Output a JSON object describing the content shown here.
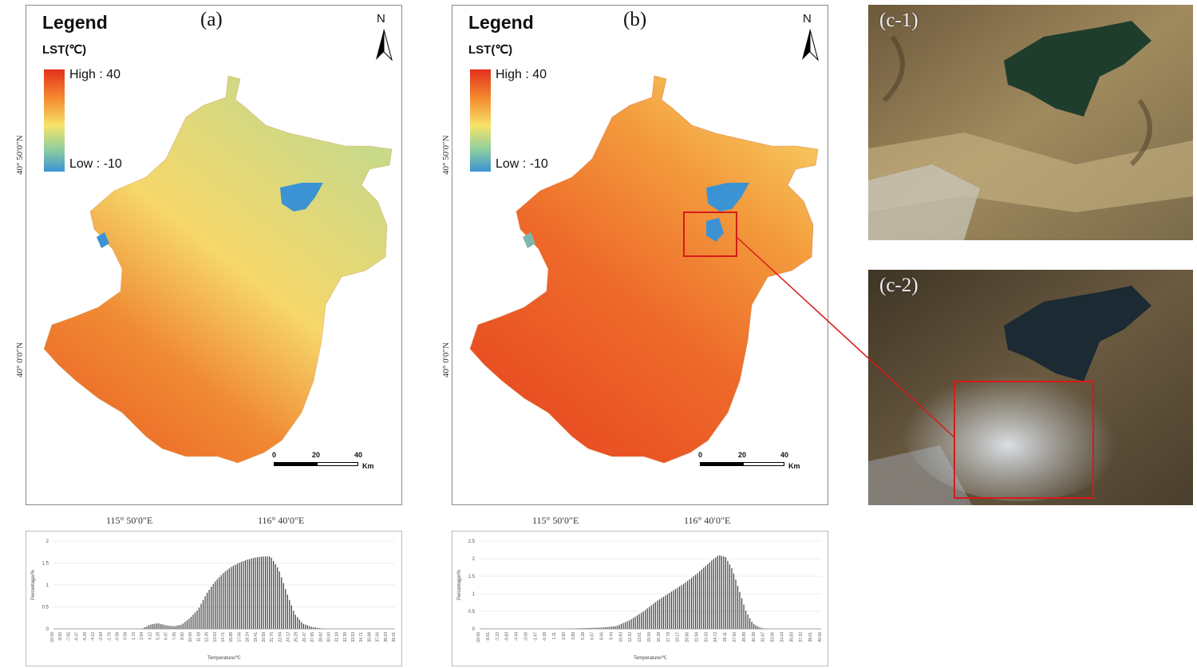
{
  "maps": [
    {
      "label": "(a)",
      "legend_title": "Legend",
      "unit_label": "LST(℃)",
      "high_label": "High : 40",
      "low_label": "Low : -10",
      "north_label": "N",
      "lat_labels": [
        "40° 50′0″N",
        "40° 0′0″N"
      ],
      "lon_labels": [
        "115° 50′0″E",
        "116° 40′0″E"
      ],
      "scale_labels": [
        "0",
        "20",
        "40",
        "Km"
      ]
    },
    {
      "label": "(b)",
      "legend_title": "Legend",
      "unit_label": "LST(℃)",
      "high_label": "High : 40",
      "low_label": "Low : -10",
      "north_label": "N",
      "lat_labels": [
        "40° 50′0″N",
        "40° 0′0″N"
      ],
      "lon_labels": [
        "115° 50′0″E",
        "116° 40′0″E"
      ],
      "scale_labels": [
        "0",
        "20",
        "40",
        "Km"
      ]
    }
  ],
  "satellite": [
    {
      "label": "(c-1)"
    },
    {
      "label": "(c-2)"
    }
  ],
  "colors": {
    "high": "#e2301c",
    "mid_high": "#f58a2e",
    "mid": "#f7e36a",
    "mid_low": "#8fcf9d",
    "low": "#3c93d4",
    "callout": "#d61a1a"
  },
  "chart_data": [
    {
      "type": "bar",
      "title": "",
      "xlabel": "Temperature/℃",
      "ylabel": "Percentage/%",
      "ylim": [
        0,
        2
      ],
      "yticks": [
        "0",
        "0.5",
        "1",
        "1.5",
        "2"
      ],
      "xticks": [
        "-10.00",
        "-8.82",
        "-7.65",
        "-6.47",
        "-5.29",
        "-4.12",
        "-2.94",
        "-1.76",
        "-0.59",
        "0.59",
        "1.76",
        "2.94",
        "4.12",
        "5.29",
        "6.47",
        "7.65",
        "8.82",
        "10.00",
        "11.18",
        "12.35",
        "13.53",
        "14.71",
        "15.88",
        "17.06",
        "18.24",
        "19.41",
        "20.59",
        "21.76",
        "22.94",
        "24.12",
        "25.29",
        "26.47",
        "27.65",
        "28.82",
        "30.00",
        "31.18",
        "32.35",
        "33.53",
        "34.71",
        "35.88",
        "37.06",
        "38.24",
        "39.41"
      ],
      "x_range": [
        -10,
        40
      ],
      "curve": [
        [
          -10,
          0
        ],
        [
          2.9,
          0
        ],
        [
          4.2,
          0.1
        ],
        [
          5.3,
          0.13
        ],
        [
          6.5,
          0.08
        ],
        [
          7.7,
          0.06
        ],
        [
          8.8,
          0.1
        ],
        [
          10,
          0.25
        ],
        [
          11.2,
          0.45
        ],
        [
          12.4,
          0.8
        ],
        [
          13.5,
          1.05
        ],
        [
          14.7,
          1.25
        ],
        [
          15.9,
          1.4
        ],
        [
          17.1,
          1.5
        ],
        [
          18.2,
          1.57
        ],
        [
          19.4,
          1.62
        ],
        [
          20.6,
          1.65
        ],
        [
          21.8,
          1.65
        ],
        [
          23,
          1.35
        ],
        [
          24.1,
          0.85
        ],
        [
          25.3,
          0.35
        ],
        [
          26.5,
          0.12
        ],
        [
          27.7,
          0.05
        ],
        [
          28.8,
          0.02
        ],
        [
          30,
          0
        ],
        [
          40,
          0
        ]
      ]
    },
    {
      "type": "bar",
      "title": "",
      "xlabel": "Temperature/℃",
      "ylabel": "Percentage/%",
      "ylim": [
        0,
        2.5
      ],
      "yticks": [
        "0",
        "0.5",
        "1",
        "1.5",
        "2",
        "2.5"
      ],
      "xticks": [
        "-10.00",
        "-8.61",
        "-7.22",
        "-5.83",
        "-4.44",
        "-3.06",
        "-1.67",
        "-0.28",
        "1.11",
        "2.50",
        "3.89",
        "5.28",
        "6.67",
        "8.06",
        "9.44",
        "10.83",
        "12.22",
        "13.61",
        "15.00",
        "16.39",
        "17.78",
        "19.17",
        "20.56",
        "21.94",
        "23.33",
        "24.72",
        "26.11",
        "27.50",
        "28.89",
        "30.28",
        "31.67",
        "33.06",
        "34.44",
        "35.83",
        "37.22",
        "38.61",
        "40.00"
      ],
      "x_range": [
        -10,
        40
      ],
      "curve": [
        [
          -10,
          0
        ],
        [
          2,
          0
        ],
        [
          5,
          0.02
        ],
        [
          8,
          0.04
        ],
        [
          10,
          0.08
        ],
        [
          12,
          0.25
        ],
        [
          14,
          0.5
        ],
        [
          16,
          0.8
        ],
        [
          18,
          1.05
        ],
        [
          20,
          1.3
        ],
        [
          22,
          1.6
        ],
        [
          24,
          1.95
        ],
        [
          25,
          2.1
        ],
        [
          26,
          2.05
        ],
        [
          27,
          1.7
        ],
        [
          28,
          1.1
        ],
        [
          29,
          0.5
        ],
        [
          30,
          0.15
        ],
        [
          31,
          0.04
        ],
        [
          32,
          0
        ],
        [
          40,
          0
        ]
      ]
    }
  ]
}
